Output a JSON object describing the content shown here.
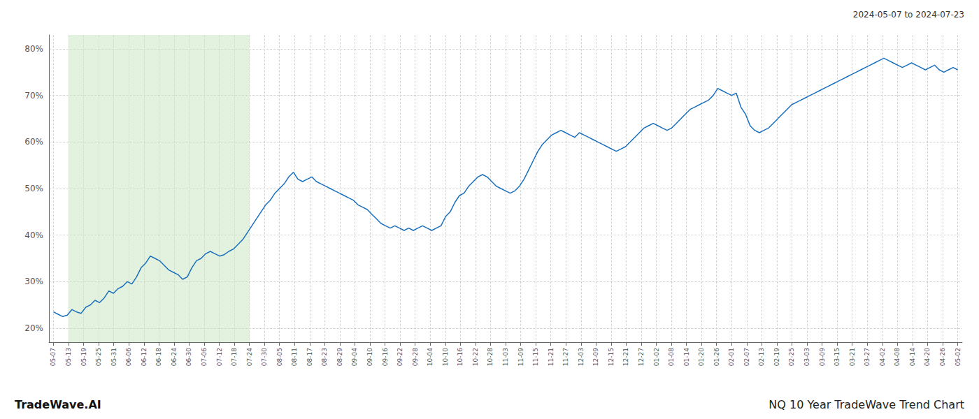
{
  "chart_data": {
    "type": "line",
    "title": "2024-05-07 to 2024-07-23",
    "annotations": [
      "TradeWave.AI",
      "NQ 10 Year TradeWave Trend Chart"
    ],
    "color": "#1a6fbd",
    "grid": true,
    "line_style": "solid",
    "xlim": [
      -0.3,
      60.3
    ],
    "xticks": [
      {
        "value": 0,
        "label": "05-07"
      },
      {
        "value": 1,
        "label": "05-13"
      },
      {
        "value": 2,
        "label": "05-19"
      },
      {
        "value": 3,
        "label": "05-25"
      },
      {
        "value": 4,
        "label": "05-31"
      },
      {
        "value": 5,
        "label": "06-06"
      },
      {
        "value": 6,
        "label": "06-12"
      },
      {
        "value": 7,
        "label": "06-18"
      },
      {
        "value": 8,
        "label": "06-24"
      },
      {
        "value": 9,
        "label": "06-30"
      },
      {
        "value": 10,
        "label": "07-06"
      },
      {
        "value": 11,
        "label": "07-12"
      },
      {
        "value": 12,
        "label": "07-18"
      },
      {
        "value": 13,
        "label": "07-24"
      },
      {
        "value": 14,
        "label": "07-30"
      },
      {
        "value": 15,
        "label": "08-05"
      },
      {
        "value": 16,
        "label": "08-11"
      },
      {
        "value": 17,
        "label": "08-17"
      },
      {
        "value": 18,
        "label": "08-23"
      },
      {
        "value": 19,
        "label": "08-29"
      },
      {
        "value": 20,
        "label": "09-04"
      },
      {
        "value": 21,
        "label": "09-10"
      },
      {
        "value": 22,
        "label": "09-16"
      },
      {
        "value": 23,
        "label": "09-22"
      },
      {
        "value": 24,
        "label": "09-28"
      },
      {
        "value": 25,
        "label": "10-04"
      },
      {
        "value": 26,
        "label": "10-10"
      },
      {
        "value": 27,
        "label": "10-16"
      },
      {
        "value": 28,
        "label": "10-22"
      },
      {
        "value": 29,
        "label": "10-28"
      },
      {
        "value": 30,
        "label": "11-03"
      },
      {
        "value": 31,
        "label": "11-09"
      },
      {
        "value": 32,
        "label": "11-15"
      },
      {
        "value": 33,
        "label": "11-21"
      },
      {
        "value": 34,
        "label": "11-27"
      },
      {
        "value": 35,
        "label": "12-03"
      },
      {
        "value": 36,
        "label": "12-09"
      },
      {
        "value": 37,
        "label": "12-15"
      },
      {
        "value": 38,
        "label": "12-21"
      },
      {
        "value": 39,
        "label": "12-27"
      },
      {
        "value": 40,
        "label": "01-02"
      },
      {
        "value": 41,
        "label": "01-08"
      },
      {
        "value": 42,
        "label": "01-14"
      },
      {
        "value": 43,
        "label": "01-20"
      },
      {
        "value": 44,
        "label": "01-26"
      },
      {
        "value": 45,
        "label": "02-01"
      },
      {
        "value": 46,
        "label": "02-07"
      },
      {
        "value": 47,
        "label": "02-13"
      },
      {
        "value": 48,
        "label": "02-19"
      },
      {
        "value": 49,
        "label": "02-25"
      },
      {
        "value": 50,
        "label": "03-03"
      },
      {
        "value": 51,
        "label": "03-09"
      },
      {
        "value": 52,
        "label": "03-15"
      },
      {
        "value": 53,
        "label": "03-21"
      },
      {
        "value": 54,
        "label": "03-27"
      },
      {
        "value": 55,
        "label": "04-02"
      },
      {
        "value": 56,
        "label": "04-08"
      },
      {
        "value": 57,
        "label": "04-14"
      },
      {
        "value": 58,
        "label": "04-20"
      },
      {
        "value": 59,
        "label": "04-26"
      },
      {
        "value": 60,
        "label": "05-02"
      }
    ],
    "ylim": [
      17,
      83
    ],
    "yticks": [
      {
        "value": 20,
        "label": "20%"
      },
      {
        "value": 30,
        "label": "30%"
      },
      {
        "value": 40,
        "label": "40%"
      },
      {
        "value": 50,
        "label": "50%"
      },
      {
        "value": 60,
        "label": "60%"
      },
      {
        "value": 70,
        "label": "70%"
      },
      {
        "value": 80,
        "label": "80%"
      }
    ],
    "shade": {
      "from": "05-13",
      "to": "07-24",
      "color": "#c8e6c0"
    },
    "x": [
      0,
      0.3061,
      0.6122,
      0.9184,
      1.2245,
      1.5306,
      1.8367,
      2.1429,
      2.449,
      2.7551,
      3.0612,
      3.3673,
      3.6735,
      3.9796,
      4.2857,
      4.5918,
      4.898,
      5.2041,
      5.5102,
      5.8163,
      6.1224,
      6.4286,
      6.7347,
      7.0408,
      7.3469,
      7.6531,
      7.9592,
      8.2653,
      8.5714,
      8.8776,
      9.1837,
      9.4898,
      9.7959,
      10.102,
      10.4082,
      10.7143,
      11.0204,
      11.3265,
      11.6327,
      11.9388,
      12.2449,
      12.551,
      12.8571,
      13.1633,
      13.4694,
      13.7755,
      14.0816,
      14.3878,
      14.6939,
      15,
      15.3061,
      15.6122,
      15.9184,
      16.2245,
      16.5306,
      16.8367,
      17.1429,
      17.449,
      17.7551,
      18.0612,
      18.3673,
      18.6735,
      18.9796,
      19.2857,
      19.5918,
      19.898,
      20.2041,
      20.5102,
      20.8163,
      21.1224,
      21.4286,
      21.7347,
      22.0408,
      22.3469,
      22.6531,
      22.9592,
      23.2653,
      23.5714,
      23.8776,
      24.1837,
      24.4898,
      24.7959,
      25.102,
      25.4082,
      25.7143,
      26.0204,
      26.3265,
      26.6327,
      26.9388,
      27.2449,
      27.551,
      27.8571,
      28.1633,
      28.4694,
      28.7755,
      29.0816,
      29.3878,
      29.6939,
      30,
      30.3061,
      30.6122,
      30.9184,
      31.2245,
      31.5306,
      31.8367,
      32.1429,
      32.449,
      32.7551,
      33.0612,
      33.3673,
      33.6735,
      33.9796,
      34.2857,
      34.5918,
      34.898,
      35.2041,
      35.5102,
      35.8163,
      36.1224,
      36.4286,
      36.7347,
      37.0408,
      37.3469,
      37.6531,
      37.9592,
      38.2653,
      38.5714,
      38.8776,
      39.1837,
      39.4898,
      39.7959,
      40.102,
      40.4082,
      40.7143,
      41.0204,
      41.3265,
      41.6327,
      41.9388,
      42.2449,
      42.551,
      42.8571,
      43.1633,
      43.4694,
      43.7755,
      44.0816,
      44.3878,
      44.6939,
      45,
      45.3061,
      45.6122,
      45.9184,
      46.2245,
      46.5306,
      46.8367,
      47.1429,
      47.449,
      47.7551,
      48.0612,
      48.3673,
      48.6735,
      48.9796,
      49.2857,
      49.5918,
      49.898,
      50.2041,
      50.5102,
      50.8163,
      51.1224,
      51.4286,
      51.7347,
      52.0408,
      52.3469,
      52.6531,
      52.9592,
      53.2653,
      53.5714,
      53.8776,
      54.1837,
      54.4898,
      54.7959,
      55.102,
      55.4082,
      55.7143,
      56.0204,
      56.3265,
      56.6327,
      56.9388,
      57.2449,
      57.551,
      57.8571,
      58.1633,
      58.4694,
      58.7755,
      59.0816,
      59.3878,
      59.6939,
      60
    ],
    "values": [
      23.5,
      23.0,
      22.5,
      22.8,
      24.0,
      23.5,
      23.2,
      24.5,
      25.0,
      26.0,
      25.5,
      26.5,
      28.0,
      27.5,
      28.5,
      29.0,
      30.0,
      29.5,
      31.0,
      33.0,
      34.0,
      35.5,
      35.0,
      34.5,
      33.5,
      32.5,
      32.0,
      31.5,
      30.5,
      31.0,
      33.0,
      34.5,
      35.0,
      36.0,
      36.5,
      36.0,
      35.5,
      35.8,
      36.5,
      37.0,
      38.0,
      39.0,
      40.5,
      42.0,
      43.5,
      45.0,
      46.5,
      47.5,
      49.0,
      50.0,
      51.0,
      52.5,
      53.5,
      52.0,
      51.5,
      52.0,
      52.5,
      51.5,
      51.0,
      50.5,
      50.0,
      49.5,
      49.0,
      48.5,
      48.0,
      47.5,
      46.5,
      46.0,
      45.5,
      44.5,
      43.5,
      42.5,
      42.0,
      41.5,
      42.0,
      41.5,
      41.0,
      41.5,
      41.0,
      41.5,
      42.0,
      41.5,
      41.0,
      41.5,
      42.0,
      44.0,
      45.0,
      47.0,
      48.5,
      49.0,
      50.5,
      51.5,
      52.5,
      53.0,
      52.5,
      51.5,
      50.5,
      50.0,
      49.5,
      49.0,
      49.5,
      50.5,
      52.0,
      54.0,
      56.0,
      58.0,
      59.5,
      60.5,
      61.5,
      62.0,
      62.5,
      62.0,
      61.5,
      61.0,
      62.0,
      61.5,
      61.0,
      60.5,
      60.0,
      59.5,
      59.0,
      58.5,
      58.0,
      58.5,
      59.0,
      60.0,
      61.0,
      62.0,
      63.0,
      63.5,
      64.0,
      63.5,
      63.0,
      62.5,
      63.0,
      64.0,
      65.0,
      66.0,
      67.0,
      67.5,
      68.0,
      68.5,
      69.0,
      70.0,
      71.5,
      71.0,
      70.5,
      70.0,
      70.5,
      67.5,
      66.0,
      63.5,
      62.5,
      62.0,
      62.5,
      63.0,
      64.0,
      65.0,
      66.0,
      67.0,
      68.0,
      68.5,
      69.0,
      69.5,
      70.0,
      70.5,
      71.0,
      71.5,
      72.0,
      72.5,
      73.0,
      73.5,
      74.0,
      74.5,
      75.0,
      75.5,
      76.0,
      76.5,
      77.0,
      77.5,
      78.0,
      77.5,
      77.0,
      76.5,
      76.0,
      76.5,
      77.0,
      76.5,
      76.0,
      75.5,
      76.0,
      76.5,
      75.5,
      75.0,
      75.5,
      76.0,
      75.5
    ]
  }
}
